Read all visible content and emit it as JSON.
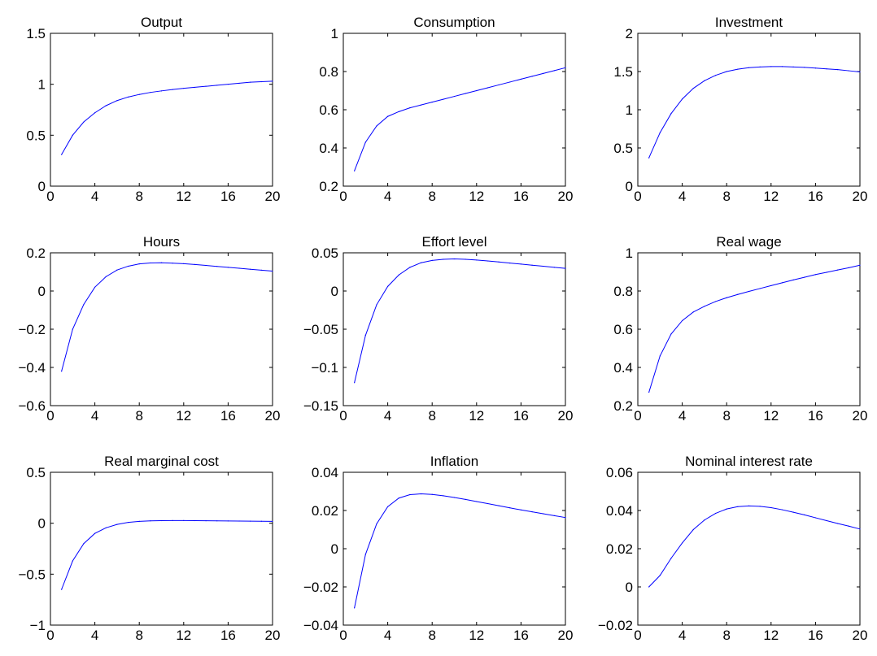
{
  "figure": {
    "line_color": "#0000ff",
    "axis_color": "#000000"
  },
  "chart_data": [
    {
      "type": "line",
      "title": "Output",
      "xlim": [
        0,
        20
      ],
      "ylim": [
        0,
        1.5
      ],
      "xticks": [
        0,
        4,
        8,
        12,
        16,
        20
      ],
      "xtick_labels": [
        "0",
        "4",
        "8",
        "12",
        "16",
        "20"
      ],
      "yticks": [
        0,
        0.5,
        1,
        1.5
      ],
      "ytick_labels": [
        "0",
        "0.5",
        "1",
        "1.5"
      ],
      "x": [
        1,
        2,
        3,
        4,
        5,
        6,
        7,
        8,
        9,
        10,
        11,
        12,
        13,
        14,
        15,
        16,
        17,
        18,
        19,
        20
      ],
      "values": [
        0.31,
        0.5,
        0.63,
        0.72,
        0.79,
        0.84,
        0.875,
        0.9,
        0.92,
        0.935,
        0.948,
        0.96,
        0.97,
        0.98,
        0.99,
        1.0,
        1.01,
        1.02,
        1.025,
        1.03
      ]
    },
    {
      "type": "line",
      "title": "Consumption",
      "xlim": [
        0,
        20
      ],
      "ylim": [
        0.2,
        1
      ],
      "xticks": [
        0,
        4,
        8,
        12,
        16,
        20
      ],
      "xtick_labels": [
        "0",
        "4",
        "8",
        "12",
        "16",
        "20"
      ],
      "yticks": [
        0.2,
        0.4,
        0.6,
        0.8,
        1
      ],
      "ytick_labels": [
        "0.2",
        "0.4",
        "0.6",
        "0.8",
        "1"
      ],
      "x": [
        1,
        2,
        3,
        4,
        5,
        6,
        7,
        8,
        9,
        10,
        11,
        12,
        13,
        14,
        15,
        16,
        17,
        18,
        19,
        20
      ],
      "values": [
        0.28,
        0.43,
        0.515,
        0.565,
        0.59,
        0.61,
        0.625,
        0.64,
        0.655,
        0.67,
        0.685,
        0.7,
        0.715,
        0.73,
        0.745,
        0.76,
        0.775,
        0.79,
        0.805,
        0.82
      ]
    },
    {
      "type": "line",
      "title": "Investment",
      "xlim": [
        0,
        20
      ],
      "ylim": [
        0,
        2
      ],
      "xticks": [
        0,
        4,
        8,
        12,
        16,
        20
      ],
      "xtick_labels": [
        "0",
        "4",
        "8",
        "12",
        "16",
        "20"
      ],
      "yticks": [
        0,
        0.5,
        1,
        1.5,
        2
      ],
      "ytick_labels": [
        "0",
        "0.5",
        "1",
        "1.5",
        "2"
      ],
      "x": [
        1,
        2,
        3,
        4,
        5,
        6,
        7,
        8,
        9,
        10,
        11,
        12,
        13,
        14,
        15,
        16,
        17,
        18,
        19,
        20
      ],
      "values": [
        0.37,
        0.7,
        0.95,
        1.14,
        1.28,
        1.38,
        1.45,
        1.5,
        1.53,
        1.55,
        1.56,
        1.565,
        1.565,
        1.56,
        1.555,
        1.545,
        1.535,
        1.525,
        1.51,
        1.495
      ]
    },
    {
      "type": "line",
      "title": "Hours",
      "xlim": [
        0,
        20
      ],
      "ylim": [
        -0.6,
        0.2
      ],
      "xticks": [
        0,
        4,
        8,
        12,
        16,
        20
      ],
      "xtick_labels": [
        "0",
        "4",
        "8",
        "12",
        "16",
        "20"
      ],
      "yticks": [
        -0.6,
        -0.4,
        -0.2,
        0,
        0.2
      ],
      "ytick_labels": [
        "−0.6",
        "−0.4",
        "−0.2",
        "0",
        "0.2"
      ],
      "x": [
        1,
        2,
        3,
        4,
        5,
        6,
        7,
        8,
        9,
        10,
        11,
        12,
        13,
        14,
        15,
        16,
        17,
        18,
        19,
        20
      ],
      "values": [
        -0.42,
        -0.2,
        -0.07,
        0.02,
        0.075,
        0.11,
        0.13,
        0.142,
        0.147,
        0.148,
        0.146,
        0.143,
        0.139,
        0.134,
        0.129,
        0.124,
        0.119,
        0.114,
        0.109,
        0.104
      ]
    },
    {
      "type": "line",
      "title": "Effort level",
      "xlim": [
        0,
        20
      ],
      "ylim": [
        -0.15,
        0.05
      ],
      "xticks": [
        0,
        4,
        8,
        12,
        16,
        20
      ],
      "xtick_labels": [
        "0",
        "4",
        "8",
        "12",
        "16",
        "20"
      ],
      "yticks": [
        -0.15,
        -0.1,
        -0.05,
        0,
        0.05
      ],
      "ytick_labels": [
        "−0.15",
        "−0.1",
        "−0.05",
        "0",
        "0.05"
      ],
      "x": [
        1,
        2,
        3,
        4,
        5,
        6,
        7,
        8,
        9,
        10,
        11,
        12,
        13,
        14,
        15,
        16,
        17,
        18,
        19,
        20
      ],
      "values": [
        -0.12,
        -0.058,
        -0.018,
        0.006,
        0.021,
        0.031,
        0.037,
        0.04,
        0.0415,
        0.042,
        0.0415,
        0.0405,
        0.0393,
        0.038,
        0.0366,
        0.0352,
        0.0338,
        0.0324,
        0.031,
        0.0296
      ]
    },
    {
      "type": "line",
      "title": "Real wage",
      "xlim": [
        0,
        20
      ],
      "ylim": [
        0.2,
        1
      ],
      "xticks": [
        0,
        4,
        8,
        12,
        16,
        20
      ],
      "xtick_labels": [
        "0",
        "4",
        "8",
        "12",
        "16",
        "20"
      ],
      "yticks": [
        0.2,
        0.4,
        0.6,
        0.8,
        1
      ],
      "ytick_labels": [
        "0.2",
        "0.4",
        "0.6",
        "0.8",
        "1"
      ],
      "x": [
        1,
        2,
        3,
        4,
        5,
        6,
        7,
        8,
        9,
        10,
        11,
        12,
        13,
        14,
        15,
        16,
        17,
        18,
        19,
        20
      ],
      "values": [
        0.27,
        0.46,
        0.575,
        0.645,
        0.69,
        0.72,
        0.745,
        0.765,
        0.782,
        0.798,
        0.813,
        0.828,
        0.843,
        0.858,
        0.872,
        0.886,
        0.898,
        0.91,
        0.922,
        0.935
      ]
    },
    {
      "type": "line",
      "title": "Real marginal cost",
      "xlim": [
        0,
        20
      ],
      "ylim": [
        -1,
        0.5
      ],
      "xticks": [
        0,
        4,
        8,
        12,
        16,
        20
      ],
      "xtick_labels": [
        "0",
        "4",
        "8",
        "12",
        "16",
        "20"
      ],
      "yticks": [
        -1,
        -0.5,
        0,
        0.5
      ],
      "ytick_labels": [
        "−1",
        "−0.5",
        "0",
        "0.5"
      ],
      "x": [
        1,
        2,
        3,
        4,
        5,
        6,
        7,
        8,
        9,
        10,
        11,
        12,
        13,
        14,
        15,
        16,
        17,
        18,
        19,
        20
      ],
      "values": [
        -0.65,
        -0.37,
        -0.2,
        -0.1,
        -0.045,
        -0.012,
        0.008,
        0.018,
        0.023,
        0.025,
        0.026,
        0.026,
        0.025,
        0.024,
        0.023,
        0.022,
        0.021,
        0.02,
        0.019,
        0.018
      ]
    },
    {
      "type": "line",
      "title": "Inflation",
      "xlim": [
        0,
        20
      ],
      "ylim": [
        -0.04,
        0.04
      ],
      "xticks": [
        0,
        4,
        8,
        12,
        16,
        20
      ],
      "xtick_labels": [
        "0",
        "4",
        "8",
        "12",
        "16",
        "20"
      ],
      "yticks": [
        -0.04,
        -0.02,
        0,
        0.02,
        0.04
      ],
      "ytick_labels": [
        "−0.04",
        "−0.02",
        "0",
        "0.02",
        "0.04"
      ],
      "x": [
        1,
        2,
        3,
        4,
        5,
        6,
        7,
        8,
        9,
        10,
        11,
        12,
        13,
        14,
        15,
        16,
        17,
        18,
        19,
        20
      ],
      "values": [
        -0.031,
        -0.003,
        0.013,
        0.022,
        0.0265,
        0.0283,
        0.0287,
        0.0284,
        0.0277,
        0.0268,
        0.0258,
        0.0247,
        0.0236,
        0.0225,
        0.0214,
        0.0203,
        0.0193,
        0.0183,
        0.0173,
        0.0163
      ]
    },
    {
      "type": "line",
      "title": "Nominal interest rate",
      "xlim": [
        0,
        20
      ],
      "ylim": [
        -0.02,
        0.06
      ],
      "xticks": [
        0,
        4,
        8,
        12,
        16,
        20
      ],
      "xtick_labels": [
        "0",
        "4",
        "8",
        "12",
        "16",
        "20"
      ],
      "yticks": [
        -0.02,
        0,
        0.02,
        0.04,
        0.06
      ],
      "ytick_labels": [
        "−0.02",
        "0",
        "0.02",
        "0.04",
        "0.06"
      ],
      "x": [
        1,
        2,
        3,
        4,
        5,
        6,
        7,
        8,
        9,
        10,
        11,
        12,
        13,
        14,
        15,
        16,
        17,
        18,
        19,
        20
      ],
      "values": [
        0.0,
        0.006,
        0.015,
        0.023,
        0.03,
        0.035,
        0.0385,
        0.0408,
        0.042,
        0.0424,
        0.0422,
        0.0415,
        0.0404,
        0.0391,
        0.0377,
        0.0362,
        0.0347,
        0.0332,
        0.0318,
        0.0303
      ]
    }
  ]
}
